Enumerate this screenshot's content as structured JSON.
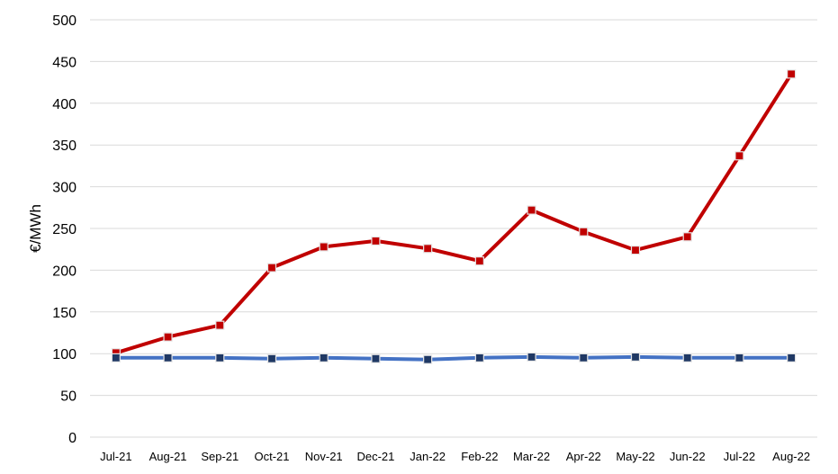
{
  "chart_data": {
    "type": "line",
    "title": "",
    "xlabel": "",
    "ylabel": "€/MWh",
    "ylim": [
      0,
      500
    ],
    "yticks": [
      "0",
      "50",
      "100",
      "150",
      "200",
      "250",
      "300",
      "350",
      "400",
      "450",
      "500"
    ],
    "grid": true,
    "legend": "none",
    "categories": [
      "Jul-21",
      "Aug-21",
      "Sep-21",
      "Oct-21",
      "Nov-21",
      "Dec-21",
      "Jan-22",
      "Feb-22",
      "Mar-22",
      "Apr-22",
      "May-22",
      "Jun-22",
      "Jul-22",
      "Aug-22"
    ],
    "series": [
      {
        "color": "#c00000",
        "marker_color": "#c00000",
        "values": [
          101,
          120,
          134,
          203,
          228,
          235,
          226,
          211,
          272,
          246,
          224,
          240,
          337,
          435
        ]
      },
      {
        "color": "#4472c4",
        "marker_color": "#1f3864",
        "values": [
          95,
          95,
          95,
          94,
          95,
          94,
          93,
          95,
          96,
          95,
          96,
          95,
          95,
          95
        ]
      }
    ]
  }
}
